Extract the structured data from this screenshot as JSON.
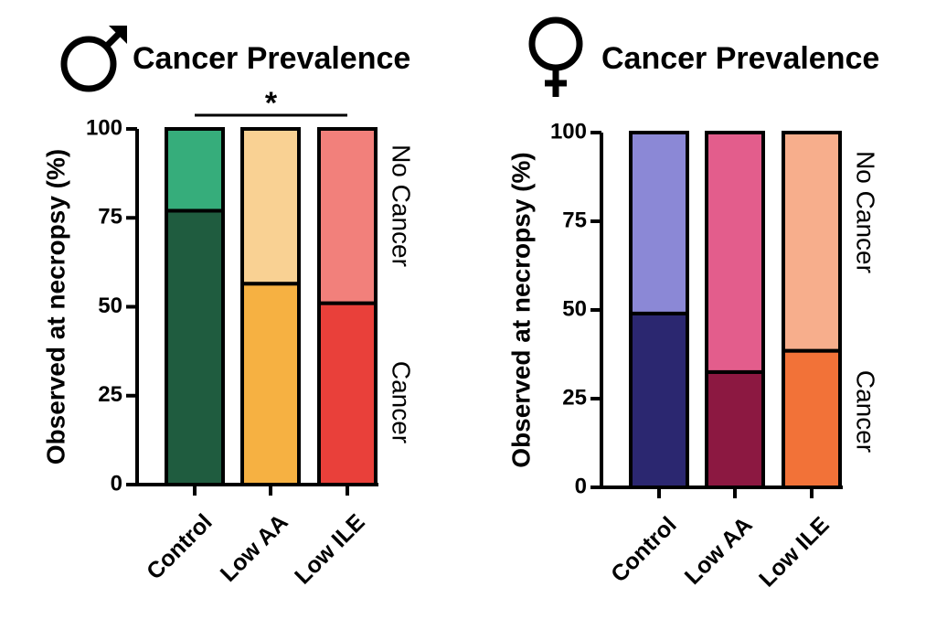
{
  "chart_data": [
    {
      "type": "bar",
      "stacked": true,
      "title": "Cancer Prevalence",
      "title_symbol": "male-symbol",
      "ylabel": "Observed at necropsy (%)",
      "ylim": [
        0,
        100
      ],
      "yticks": [
        0,
        25,
        50,
        75,
        100
      ],
      "categories": [
        "Control",
        "Low AA",
        "Low ILE"
      ],
      "series": [
        {
          "name": "Cancer",
          "values": [
            77,
            56.5,
            51
          ],
          "colors": [
            "#1f5c3f",
            "#f6b142",
            "#e9403a"
          ]
        },
        {
          "name": "No Cancer",
          "values": [
            23,
            43.5,
            49
          ],
          "colors": [
            "#36ad7b",
            "#f9d193",
            "#f2807b"
          ]
        }
      ],
      "side_labels": {
        "top": "No Cancer",
        "bottom": "Cancer"
      },
      "annotation": "*",
      "grid": false
    },
    {
      "type": "bar",
      "stacked": true,
      "title": "Cancer Prevalence",
      "title_symbol": "female-symbol",
      "ylabel": "Observed at necropsy (%)",
      "ylim": [
        0,
        100
      ],
      "yticks": [
        0,
        25,
        50,
        75,
        100
      ],
      "categories": [
        "Control",
        "Low AA",
        "Low ILE"
      ],
      "series": [
        {
          "name": "Cancer",
          "values": [
            49,
            32.5,
            38.5
          ],
          "colors": [
            "#2b2770",
            "#8c1841",
            "#f27238"
          ]
        },
        {
          "name": "No Cancer",
          "values": [
            51,
            67.5,
            61.5
          ],
          "colors": [
            "#8b88d6",
            "#e35d8c",
            "#f7ae8c"
          ]
        }
      ],
      "side_labels": {
        "top": "No Cancer",
        "bottom": "Cancer"
      },
      "annotation": "",
      "grid": false
    }
  ]
}
